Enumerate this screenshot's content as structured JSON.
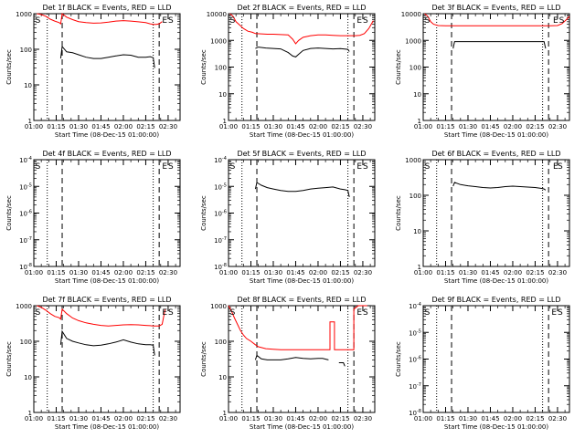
{
  "chart_data": [
    {
      "type": "line",
      "title": "Det 1f BLACK = Events, RED = LLD",
      "xlabel": "Start Time (08-Dec-15 01:00:00)",
      "ylabel": "Counts/sec",
      "y_scale": "log",
      "ylim": [
        1,
        1000
      ],
      "yticks": [
        "1",
        "10",
        "100",
        "1000"
      ],
      "xlim": [
        "01:00",
        "02:38"
      ],
      "xticks": [
        "01:00",
        "01:15",
        "01:30",
        "01:45",
        "02:00",
        "02:15",
        "02:30"
      ],
      "markers": [
        {
          "label": "S",
          "x": "01:01"
        },
        {
          "label": "E",
          "x": "02:26"
        },
        {
          "label": "S",
          "x": "02:30"
        }
      ],
      "series": [
        {
          "color": "#000000",
          "x": [
            "01:18",
            "01:19",
            "01:22",
            "01:26",
            "01:30",
            "01:35",
            "01:40",
            "01:45",
            "01:50",
            "01:55",
            "02:00",
            "02:05",
            "02:10",
            "02:15",
            "02:18",
            "02:20",
            "02:21"
          ],
          "y": [
            55,
            120,
            85,
            80,
            70,
            60,
            55,
            55,
            60,
            65,
            70,
            68,
            60,
            60,
            62,
            58,
            30
          ]
        },
        {
          "color": "#ff0000",
          "x": [
            "01:02",
            "01:05",
            "01:08",
            "01:11",
            "01:14",
            "01:17",
            "01:18",
            "01:19",
            "01:22",
            "01:26",
            "01:30",
            "01:35",
            "01:40",
            "01:45",
            "01:50",
            "01:55",
            "02:00",
            "02:05",
            "02:10",
            "02:15",
            "02:18",
            "02:20",
            "02:22",
            "02:24",
            "02:26"
          ],
          "y": [
            1000,
            950,
            850,
            700,
            620,
            560,
            520,
            1000,
            800,
            680,
            600,
            560,
            540,
            550,
            580,
            620,
            640,
            620,
            590,
            560,
            520,
            500,
            500,
            520,
            600
          ]
        }
      ]
    },
    {
      "type": "line",
      "title": "Det 2f BLACK = Events, RED = LLD",
      "xlabel": "Start Time (08-Dec-15 01:00:00)",
      "ylabel": "Counts/sec",
      "y_scale": "log",
      "ylim": [
        1,
        10000
      ],
      "yticks": [
        "1",
        "10",
        "100",
        "1000",
        "10000"
      ],
      "xlim": [
        "01:00",
        "02:38"
      ],
      "xticks": [
        "01:00",
        "01:15",
        "01:30",
        "01:45",
        "02:00",
        "02:15",
        "02:30"
      ],
      "markers": [
        {
          "label": "S",
          "x": "01:01"
        },
        {
          "label": "E",
          "x": "02:26"
        },
        {
          "label": "S",
          "x": "02:30"
        }
      ],
      "series": [
        {
          "color": "#000000",
          "x": [
            "01:18",
            "01:20",
            "01:25",
            "01:30",
            "01:35",
            "01:40",
            "01:43",
            "01:45",
            "01:47",
            "01:50",
            "01:55",
            "02:00",
            "02:05",
            "02:10",
            "02:15",
            "02:18",
            "02:20",
            "02:21"
          ],
          "y": [
            500,
            560,
            520,
            500,
            480,
            350,
            260,
            240,
            300,
            420,
            500,
            520,
            500,
            480,
            490,
            470,
            460,
            380
          ]
        },
        {
          "color": "#ff0000",
          "x": [
            "01:01",
            "01:03",
            "01:05",
            "01:08",
            "01:10",
            "01:13",
            "01:16",
            "01:18",
            "01:22",
            "01:26",
            "01:30",
            "01:35",
            "01:40",
            "01:43",
            "01:45",
            "01:47",
            "01:50",
            "01:55",
            "02:00",
            "02:05",
            "02:10",
            "02:15",
            "02:20",
            "02:25",
            "02:28",
            "02:31",
            "02:34",
            "02:37"
          ],
          "y": [
            10000,
            8000,
            5000,
            3500,
            2800,
            2200,
            2000,
            1800,
            1750,
            1700,
            1700,
            1650,
            1600,
            1100,
            750,
            1000,
            1300,
            1500,
            1600,
            1600,
            1550,
            1500,
            1500,
            1500,
            1550,
            1800,
            2800,
            5500
          ]
        }
      ]
    },
    {
      "type": "line",
      "title": "Det 3f BLACK = Events, RED = LLD",
      "xlabel": "Start Time (08-Dec-15 01:00:00)",
      "ylabel": "Counts/sec",
      "y_scale": "log",
      "ylim": [
        1,
        10000
      ],
      "yticks": [
        "1",
        "10",
        "100",
        "1000",
        "10000"
      ],
      "xlim": [
        "01:00",
        "02:38"
      ],
      "xticks": [
        "01:00",
        "01:15",
        "01:30",
        "01:45",
        "02:00",
        "02:15",
        "02:30"
      ],
      "markers": [
        {
          "label": "S",
          "x": "01:01"
        },
        {
          "label": "E",
          "x": "02:27"
        },
        {
          "label": "S",
          "x": "02:31"
        }
      ],
      "series": [
        {
          "color": "#000000",
          "x": [
            "01:20",
            "01:21",
            "01:30",
            "01:45",
            "02:00",
            "02:15",
            "02:21",
            "02:22"
          ],
          "y": [
            500,
            900,
            900,
            900,
            900,
            900,
            900,
            500
          ]
        },
        {
          "color": "#ff0000",
          "x": [
            "01:01",
            "01:03",
            "01:05",
            "01:07",
            "01:10",
            "01:15",
            "01:20",
            "01:30",
            "01:45",
            "02:00",
            "02:15",
            "02:25",
            "02:30",
            "02:33",
            "02:36",
            "02:38"
          ],
          "y": [
            10000,
            8000,
            5000,
            4000,
            3600,
            3500,
            3500,
            3500,
            3500,
            3500,
            3500,
            3500,
            3600,
            4200,
            6000,
            8000
          ]
        }
      ]
    },
    {
      "type": "line",
      "title": "Det 4f BLACK = Events, RED = LLD",
      "xlabel": "Start Time (08-Dec-15 01:00:00)",
      "ylabel": "Counts/sec",
      "y_scale": "log",
      "ylim": [
        1e-08,
        0.0001
      ],
      "yticks": [
        "10^-8",
        "10^-7",
        "10^-6",
        "10^-5",
        "10^-4"
      ],
      "xlim": [
        "01:00",
        "02:38"
      ],
      "xticks": [
        "01:00",
        "01:15",
        "01:30",
        "01:45",
        "02:00",
        "02:15",
        "02:30"
      ],
      "markers": [
        {
          "label": "S",
          "x": "01:01"
        },
        {
          "label": "E",
          "x": "02:26"
        },
        {
          "label": "S",
          "x": "02:30"
        }
      ],
      "series": []
    },
    {
      "type": "line",
      "title": "Det 5f BLACK = Events, RED = LLD",
      "xlabel": "Start Time (08-Dec-15 01:00:00)",
      "ylabel": "Counts/sec",
      "y_scale": "log",
      "ylim": [
        1e-08,
        0.0001
      ],
      "yticks": [
        "10^-8",
        "10^-7",
        "10^-6",
        "10^-5",
        "10^-4"
      ],
      "xlim": [
        "01:00",
        "02:38"
      ],
      "xticks": [
        "01:00",
        "01:15",
        "01:30",
        "01:45",
        "02:00",
        "02:15",
        "02:30"
      ],
      "markers": [
        {
          "label": "S",
          "x": "01:01"
        },
        {
          "label": "E",
          "x": "02:26"
        },
        {
          "label": "S",
          "x": "02:30"
        }
      ],
      "series": [
        {
          "color": "#000000",
          "x": [
            "01:18",
            "01:19",
            "01:22",
            "01:26",
            "01:30",
            "01:35",
            "01:40",
            "01:45",
            "01:50",
            "01:55",
            "02:00",
            "02:05",
            "02:10",
            "02:15",
            "02:18",
            "02:20",
            "02:21"
          ],
          "y": [
            8e-06,
            1.4e-05,
            1.1e-05,
            9e-06,
            8e-06,
            7e-06,
            6.5e-06,
            6.5e-06,
            7e-06,
            8e-06,
            8.5e-06,
            9e-06,
            9.5e-06,
            8e-06,
            7.5e-06,
            7e-06,
            4e-06
          ]
        }
      ]
    },
    {
      "type": "line",
      "title": "Det 6f BLACK = Events, RED = LLD",
      "xlabel": "Start Time (08-Dec-15 01:00:00)",
      "ylabel": "Counts/sec",
      "y_scale": "log",
      "ylim": [
        1,
        1000
      ],
      "yticks": [
        "1",
        "10",
        "100",
        "1000"
      ],
      "xlim": [
        "01:00",
        "02:38"
      ],
      "xticks": [
        "01:00",
        "01:15",
        "01:30",
        "01:45",
        "02:00",
        "02:15",
        "02:30"
      ],
      "markers": [
        {
          "label": "S",
          "x": "01:01"
        },
        {
          "label": "E",
          "x": "02:27"
        },
        {
          "label": "S",
          "x": "02:30"
        }
      ],
      "series": [
        {
          "color": "#000000",
          "x": [
            "01:20",
            "01:21",
            "01:25",
            "01:30",
            "01:35",
            "01:40",
            "01:45",
            "01:50",
            "01:55",
            "02:00",
            "02:05",
            "02:10",
            "02:15",
            "02:20",
            "02:21",
            "02:22"
          ],
          "y": [
            180,
            230,
            200,
            185,
            175,
            165,
            160,
            165,
            175,
            180,
            175,
            170,
            165,
            155,
            150,
            140
          ]
        }
      ]
    },
    {
      "type": "line",
      "title": "Det 7f BLACK = Events, RED = LLD",
      "xlabel": "Start Time (08-Dec-15 01:00:00)",
      "ylabel": "Counts/sec",
      "y_scale": "log",
      "ylim": [
        1,
        1000
      ],
      "yticks": [
        "1",
        "10",
        "100",
        "1000"
      ],
      "xlim": [
        "01:00",
        "02:38"
      ],
      "xticks": [
        "01:00",
        "01:15",
        "01:30",
        "01:45",
        "02:00",
        "02:15",
        "02:30"
      ],
      "markers": [
        {
          "label": "S",
          "x": "01:01"
        },
        {
          "label": "E",
          "x": "02:26"
        },
        {
          "label": "S",
          "x": "02:30"
        }
      ],
      "series": [
        {
          "color": "#000000",
          "x": [
            "01:18",
            "01:19",
            "01:22",
            "01:26",
            "01:30",
            "01:35",
            "01:40",
            "01:45",
            "01:50",
            "01:55",
            "02:00",
            "02:05",
            "02:10",
            "02:15",
            "02:18",
            "02:20",
            "02:21"
          ],
          "y": [
            80,
            190,
            120,
            100,
            90,
            80,
            75,
            78,
            85,
            95,
            110,
            95,
            85,
            80,
            80,
            78,
            40
          ]
        },
        {
          "color": "#ff0000",
          "x": [
            "01:02",
            "01:05",
            "01:08",
            "01:11",
            "01:14",
            "01:17",
            "01:18",
            "01:19",
            "01:22",
            "01:26",
            "01:30",
            "01:35",
            "01:40",
            "01:45",
            "01:50",
            "01:55",
            "02:00",
            "02:05",
            "02:10",
            "02:15",
            "02:18",
            "02:20",
            "02:22",
            "02:24",
            "02:26",
            "02:28"
          ],
          "y": [
            1000,
            900,
            750,
            600,
            500,
            460,
            420,
            800,
            600,
            450,
            380,
            330,
            300,
            280,
            270,
            280,
            290,
            295,
            290,
            280,
            275,
            270,
            270,
            270,
            300,
            800
          ]
        }
      ]
    },
    {
      "type": "line",
      "title": "Det 8f BLACK = Events, RED = LLD",
      "xlabel": "Start Time (08-Dec-15 01:00:00)",
      "ylabel": "Counts/sec",
      "y_scale": "log",
      "ylim": [
        1,
        1000
      ],
      "yticks": [
        "1",
        "10",
        "100",
        "1000"
      ],
      "xlim": [
        "01:00",
        "02:38"
      ],
      "xticks": [
        "01:00",
        "01:15",
        "01:30",
        "01:45",
        "02:00",
        "02:15",
        "02:30"
      ],
      "markers": [
        {
          "label": "S",
          "x": "01:01"
        },
        {
          "label": "E",
          "x": "02:26"
        },
        {
          "label": "S",
          "x": "02:30"
        }
      ],
      "series": [
        {
          "color": "#000000",
          "x": [
            "01:18",
            "01:19",
            "01:22",
            "01:26",
            "01:30",
            "01:35",
            "01:40",
            "01:45",
            "01:50",
            "01:55",
            "02:00",
            "02:03",
            "02:07",
            "02:08",
            "02:10",
            "02:13",
            "02:14",
            "02:17",
            "02:18"
          ],
          "y": [
            30,
            40,
            32,
            30,
            30,
            30,
            32,
            35,
            33,
            32,
            33,
            33,
            30,
            null,
            null,
            null,
            25,
            25,
            20
          ]
        },
        {
          "color": "#ff0000",
          "x": [
            "01:00",
            "01:02",
            "01:04",
            "01:06",
            "01:08",
            "01:10",
            "01:12",
            "01:15",
            "01:18",
            "01:20",
            "01:25",
            "01:30",
            "01:35",
            "01:40",
            "01:45",
            "01:50",
            "01:55",
            "02:00",
            "02:05",
            "02:08",
            "02:08",
            "02:11",
            "02:11",
            "02:15",
            "02:20",
            "02:24",
            "02:24",
            "02:27",
            "02:30",
            "02:33"
          ],
          "y": [
            1000,
            700,
            450,
            300,
            200,
            150,
            120,
            100,
            80,
            70,
            62,
            60,
            58,
            58,
            58,
            58,
            58,
            58,
            58,
            58,
            350,
            350,
            58,
            58,
            58,
            58,
            800,
            1000,
            1000,
            1000
          ]
        }
      ]
    },
    {
      "type": "line",
      "title": "Det 9f BLACK = Events, RED = LLD",
      "xlabel": "Start Time (08-Dec-15 01:00:00)",
      "ylabel": "Counts/sec",
      "y_scale": "log",
      "ylim": [
        1e-08,
        0.0001
      ],
      "yticks": [
        "10^-8",
        "10^-7",
        "10^-6",
        "10^-5",
        "10^-4"
      ],
      "xlim": [
        "01:00",
        "02:38"
      ],
      "xticks": [
        "01:00",
        "01:15",
        "01:30",
        "01:45",
        "02:00",
        "02:15",
        "02:30"
      ],
      "markers": [
        {
          "label": "S",
          "x": "01:01"
        },
        {
          "label": "E",
          "x": "02:26"
        },
        {
          "label": "S",
          "x": "02:30"
        }
      ],
      "series": []
    }
  ]
}
